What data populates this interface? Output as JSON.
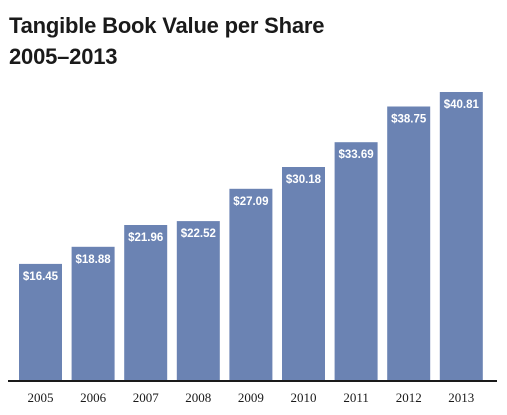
{
  "chart_data": {
    "type": "bar",
    "title": "Tangible Book Value per Share",
    "subtitle": "2005–2013",
    "categories": [
      "2005",
      "2006",
      "2007",
      "2008",
      "2009",
      "2010",
      "2011",
      "2012",
      "2013"
    ],
    "values": [
      16.45,
      18.88,
      21.96,
      22.52,
      27.09,
      30.18,
      33.69,
      38.75,
      40.81
    ],
    "data_labels": [
      "$16.45",
      "$18.88",
      "$21.96",
      "$22.52",
      "$27.09",
      "$30.18",
      "$33.69",
      "$38.75",
      "$40.81"
    ],
    "xlabel": "",
    "ylabel": "",
    "ylim": [
      0,
      40.81
    ],
    "grid": false,
    "legend": "none",
    "bar_color": "#6b83b3",
    "label_color": "#ffffff",
    "axis_color": "#1a1a1a"
  }
}
